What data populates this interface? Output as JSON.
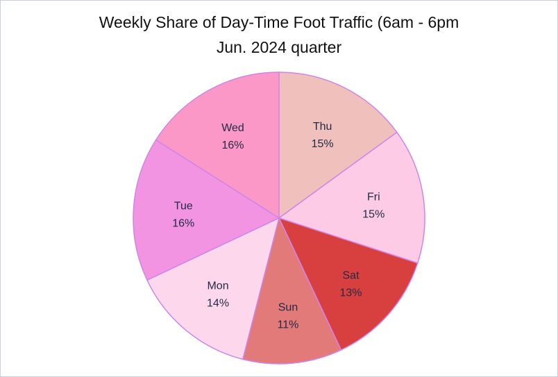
{
  "chart": {
    "title_line1": "Weekly Share of Day-Time Foot Traffic (6am - 6pm",
    "title_line2": "Jun. 2024 quarter"
  },
  "chart_data": {
    "type": "pie",
    "title": "Weekly Share of Day-Time Foot Traffic (6am - 6pm Jun. 2024 quarter",
    "start": "12 o'clock",
    "direction": "clockwise",
    "slices": [
      {
        "label": "Thu",
        "value": 15,
        "value_label": "15%",
        "color": "#f0c0bc"
      },
      {
        "label": "Fri",
        "value": 15,
        "value_label": "15%",
        "color": "#fdcbe5"
      },
      {
        "label": "Sat",
        "value": 13,
        "value_label": "13%",
        "color": "#d84040"
      },
      {
        "label": "Sun",
        "value": 11,
        "value_label": "11%",
        "color": "#e37a7a"
      },
      {
        "label": "Mon",
        "value": 14,
        "value_label": "14%",
        "color": "#fdd8ec"
      },
      {
        "label": "Tue",
        "value": 16,
        "value_label": "16%",
        "color": "#f294e2"
      },
      {
        "label": "Wed",
        "value": 16,
        "value_label": "16%",
        "color": "#fb98c8"
      }
    ],
    "slice_border_color": "#cf85e8"
  }
}
